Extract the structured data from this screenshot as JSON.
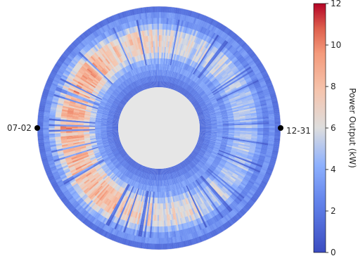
{
  "chart_data": {
    "type": "heatmap",
    "subtype": "polar-ring",
    "direction_labels": [
      "07-02",
      "12-31"
    ],
    "colorbar": {
      "label": "Power Output (kW)",
      "ticks": [
        0,
        2,
        4,
        6,
        8,
        10,
        12
      ],
      "range": [
        0,
        12
      ],
      "colormap": "coolwarm",
      "colors": {
        "low": "#3b4cc0",
        "mid": "#dddddd",
        "high": "#b40426"
      }
    },
    "center_color": "#e6e6e6",
    "radial_profile": {
      "description_values_kw_by_radial_fraction": [
        {
          "r": 0.0,
          "kw": 1.2
        },
        {
          "r": 0.25,
          "kw": 3.5
        },
        {
          "r": 0.45,
          "kw": 8.8
        },
        {
          "r": 0.65,
          "kw": 9.5
        },
        {
          "r": 0.8,
          "kw": 5.0
        },
        {
          "r": 1.0,
          "kw": 1.0
        }
      ],
      "peak_kw": 10.5
    }
  }
}
